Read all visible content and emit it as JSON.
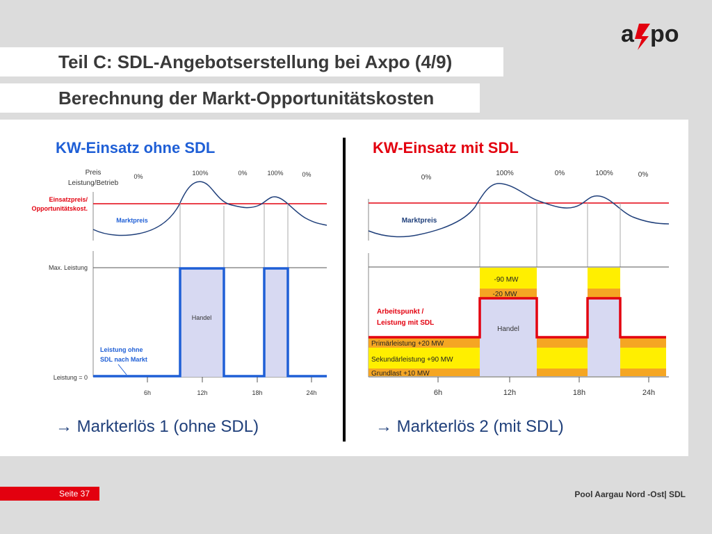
{
  "header": {
    "title": "Teil C: SDL-Angebotserstellung bei Axpo (4/9)",
    "subtitle": "Berechnung der Markt-Opportunitätskosten",
    "logo_text": "axpo"
  },
  "left": {
    "heading": "KW-Einsatz ohne SDL",
    "y_label_price_1": "Preis",
    "y_label_price_2": "Leistung/Betrieb",
    "threshold_label_1": "Einsatzpreis/",
    "threshold_label_2": "Opportunitätskost.",
    "market_price_label": "Marktpreis",
    "pct_labels": [
      "0%",
      "100%",
      "0%",
      "100%",
      "0%"
    ],
    "max_label": "Max. Leistung",
    "zero_label": "Leistung = 0",
    "trade_label": "Handel",
    "output_label_1": "Leistung ohne",
    "output_label_2": "SDL nach Markt",
    "x_ticks": [
      "6h",
      "12h",
      "18h",
      "24h"
    ],
    "result": "Markterlös 1 (ohne SDL)"
  },
  "right": {
    "heading": "KW-Einsatz mit SDL",
    "market_price_label": "Marktpreis",
    "pct_labels": [
      "0%",
      "100%",
      "0%",
      "100%",
      "0%"
    ],
    "band_minus90": "-90 MW",
    "band_minus20": "-20 MW",
    "workpoint_label_1": "Arbeitspunkt /",
    "workpoint_label_2": "Leistung mit SDL",
    "trade_label": "Handel",
    "primary_label": "Primärleistung +20 MW",
    "secondary_label": "Sekundärleistung +90 MW",
    "base_label": "Grundlast +10 MW",
    "x_ticks": [
      "6h",
      "12h",
      "18h",
      "24h"
    ],
    "result": "Markterlös 2 (mit SDL)"
  },
  "footer": {
    "page": "Seite 37",
    "source": "Pool Aargau Nord -Ost| SDL"
  },
  "colors": {
    "brand_red": "#e3000f",
    "blue": "#1f5fd6",
    "navy": "#1f3f7a",
    "band_yellow": "#ffef00",
    "band_orange": "#f5a623",
    "trade_fill": "#d7d9f2"
  }
}
